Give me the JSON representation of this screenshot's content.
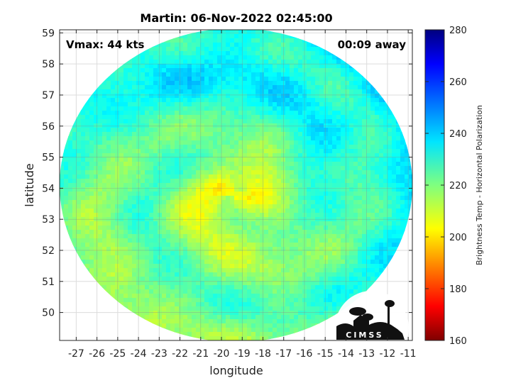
{
  "chart_data": {
    "type": "heatmap",
    "title": "Martin: 06-Nov-2022 02:45:00",
    "xlabel": "longitude",
    "ylabel": "latitude",
    "xlim": [
      -27.8,
      -10.8
    ],
    "ylim": [
      49.1,
      59.1
    ],
    "xticks": [
      -27,
      -26,
      -25,
      -24,
      -23,
      -22,
      -21,
      -20,
      -19,
      -18,
      -17,
      -16,
      -15,
      -14,
      -13,
      -12,
      -11
    ],
    "yticks": [
      50,
      51,
      52,
      53,
      54,
      55,
      56,
      57,
      58,
      59
    ],
    "grid": true,
    "annotations": {
      "vmax": "Vmax: 44 kts",
      "time_away": "00:09 away"
    },
    "colorbar": {
      "label": "Brightness Temp - Horizontal Polarization",
      "min": 160,
      "max": 280,
      "ticks": [
        160,
        180,
        200,
        220,
        240,
        260,
        280
      ],
      "colormap": "jet",
      "position": "right"
    },
    "swath": {
      "center_lon": -19.3,
      "center_lat": 54.1,
      "radius_lon": 8.5,
      "radius_lat": 5.05
    },
    "storm_center": {
      "lon": -19.5,
      "lat": 53.9
    }
  },
  "logo": {
    "text": "CIMSS"
  }
}
